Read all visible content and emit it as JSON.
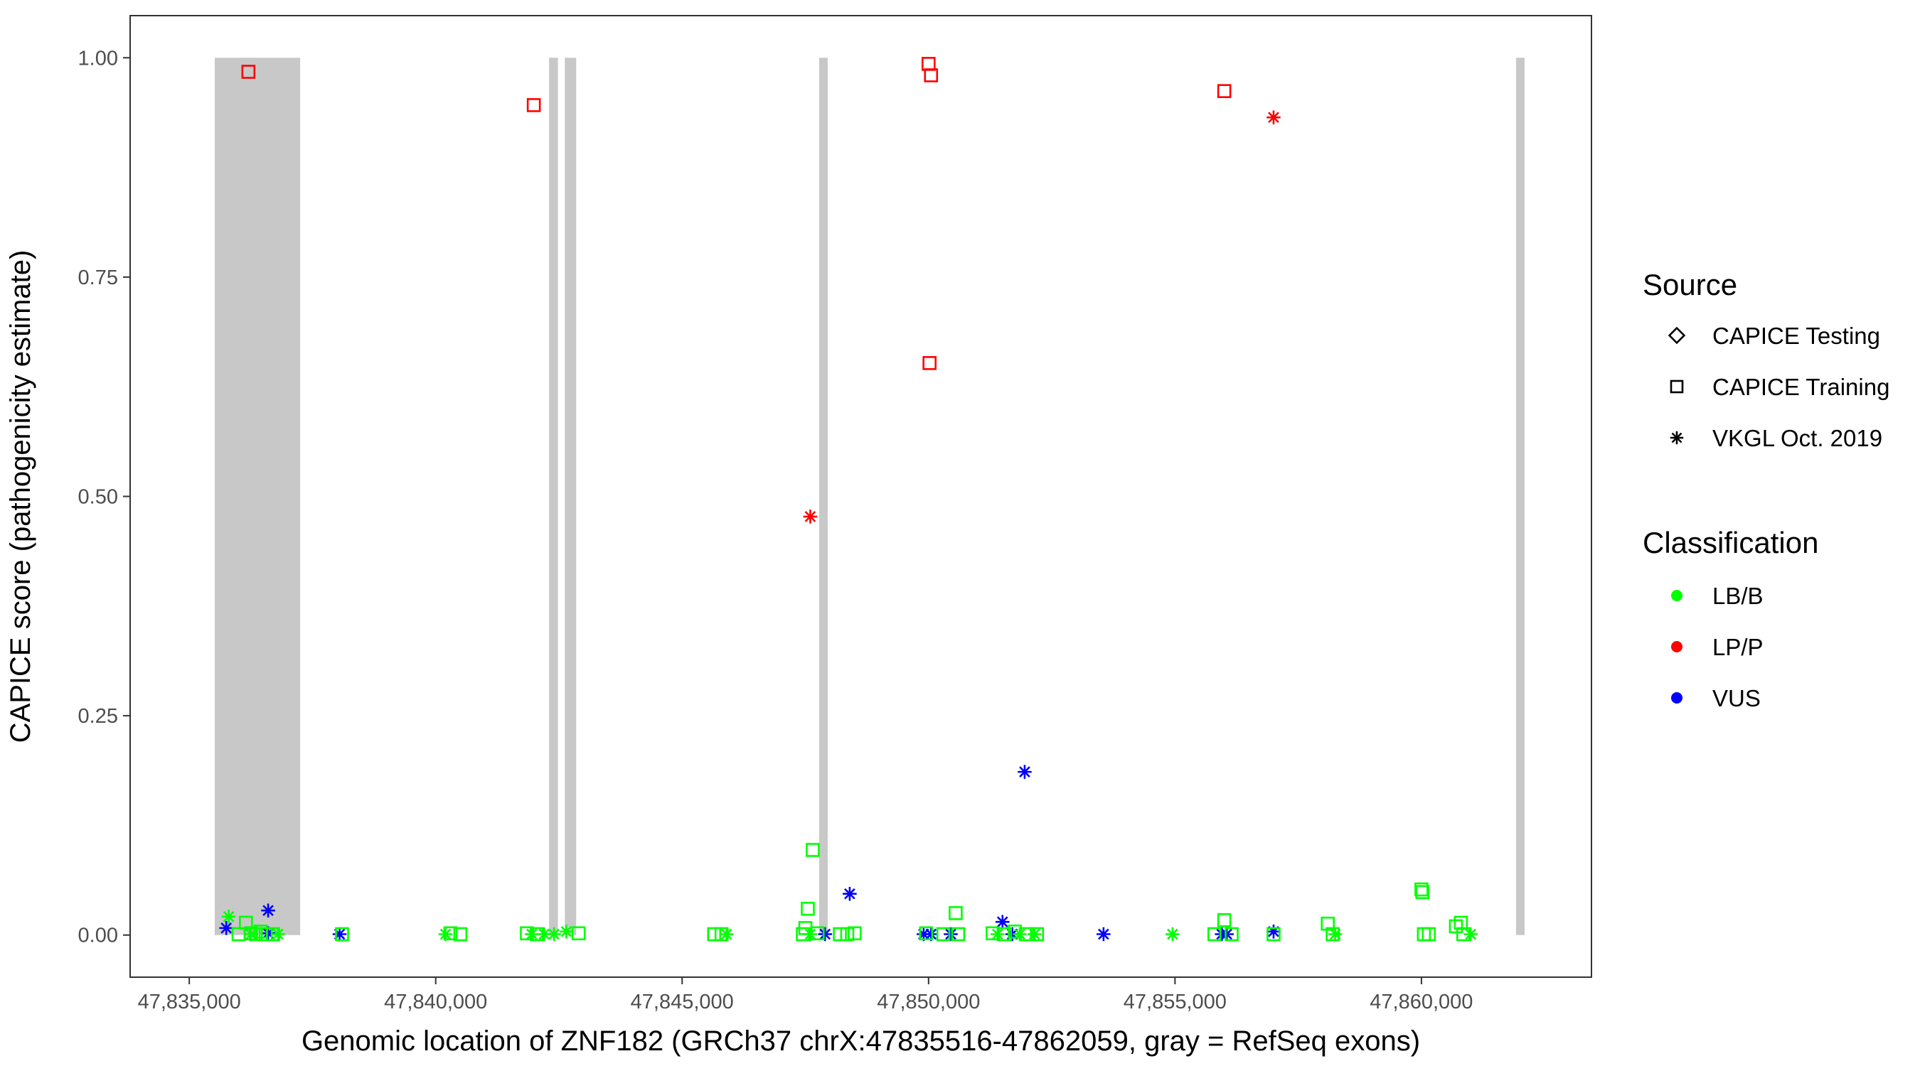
{
  "chart_data": {
    "type": "scatter",
    "title": "",
    "xlabel": "Genomic location of ZNF182 (GRCh37 chrX:47835516-47862059, gray = RefSeq exons)",
    "ylabel": "CAPICE score (pathogenicity estimate)",
    "xlim": [
      47833800,
      47863450
    ],
    "ylim": [
      -0.048,
      1.048
    ],
    "x_ticks": [
      47835000,
      47840000,
      47845000,
      47850000,
      47855000,
      47860000
    ],
    "x_tick_labels": [
      "47,835,000",
      "47,840,000",
      "47,845,000",
      "47,850,000",
      "47,855,000",
      "47,860,000"
    ],
    "y_ticks": [
      0,
      0.25,
      0.5,
      0.75,
      1.0
    ],
    "y_tick_labels": [
      "0.00",
      "0.25",
      "0.50",
      "0.75",
      "1.00"
    ],
    "grid": false,
    "exons": [
      [
        47835516,
        47837250
      ],
      [
        47842300,
        47842480
      ],
      [
        47842620,
        47842850
      ],
      [
        47847780,
        47847950
      ],
      [
        47861920,
        47862059
      ]
    ],
    "exon_color": "#c8c8c8",
    "legend": {
      "placement": "right",
      "source": {
        "title": "Source",
        "items": [
          {
            "label": "CAPICE Testing",
            "shape": "diamond"
          },
          {
            "label": "CAPICE Training",
            "shape": "square"
          },
          {
            "label": "VKGL Oct. 2019",
            "shape": "asterisk"
          }
        ]
      },
      "classification": {
        "title": "Classification",
        "items": [
          {
            "label": "LB/B",
            "color": "#00ff00"
          },
          {
            "label": "LP/P",
            "color": "#ff0000"
          },
          {
            "label": "VUS",
            "color": "#0000ff"
          }
        ]
      }
    },
    "series": [
      {
        "name": "LP/P",
        "color": "#ff0000",
        "points": [
          {
            "x": 47836200,
            "y": 0.984,
            "shape": "square"
          },
          {
            "x": 47841990,
            "y": 0.946,
            "shape": "square"
          },
          {
            "x": 47850000,
            "y": 0.993,
            "shape": "square"
          },
          {
            "x": 47850050,
            "y": 0.98,
            "shape": "square"
          },
          {
            "x": 47850020,
            "y": 0.652,
            "shape": "square"
          },
          {
            "x": 47847600,
            "y": 0.477,
            "shape": "asterisk"
          },
          {
            "x": 47856000,
            "y": 0.962,
            "shape": "square"
          },
          {
            "x": 47857000,
            "y": 0.932,
            "shape": "asterisk"
          }
        ]
      },
      {
        "name": "VUS",
        "color": "#0000ff",
        "points": [
          {
            "x": 47835750,
            "y": 0.008,
            "shape": "asterisk"
          },
          {
            "x": 47836600,
            "y": 0.028,
            "shape": "asterisk"
          },
          {
            "x": 47836600,
            "y": 0.002,
            "shape": "asterisk"
          },
          {
            "x": 47838050,
            "y": 0.001,
            "shape": "asterisk"
          },
          {
            "x": 47847900,
            "y": 0.001,
            "shape": "asterisk"
          },
          {
            "x": 47848400,
            "y": 0.047,
            "shape": "asterisk"
          },
          {
            "x": 47849900,
            "y": 0.001,
            "shape": "asterisk"
          },
          {
            "x": 47850050,
            "y": 0.001,
            "shape": "asterisk"
          },
          {
            "x": 47850450,
            "y": 0.001,
            "shape": "asterisk"
          },
          {
            "x": 47851500,
            "y": 0.015,
            "shape": "asterisk"
          },
          {
            "x": 47851700,
            "y": 0.001,
            "shape": "asterisk"
          },
          {
            "x": 47851950,
            "y": 0.186,
            "shape": "asterisk"
          },
          {
            "x": 47853550,
            "y": 0.001,
            "shape": "asterisk"
          },
          {
            "x": 47855950,
            "y": 0.001,
            "shape": "asterisk"
          },
          {
            "x": 47856050,
            "y": 0.001,
            "shape": "asterisk"
          },
          {
            "x": 47857000,
            "y": 0.004,
            "shape": "asterisk"
          }
        ]
      },
      {
        "name": "LB/B",
        "color": "#00ff00",
        "points": [
          {
            "x": 47835800,
            "y": 0.021,
            "shape": "asterisk"
          },
          {
            "x": 47836000,
            "y": 0.001,
            "shape": "square"
          },
          {
            "x": 47836150,
            "y": 0.014,
            "shape": "square"
          },
          {
            "x": 47836250,
            "y": 0.002,
            "shape": "square"
          },
          {
            "x": 47836350,
            "y": 0.001,
            "shape": "square"
          },
          {
            "x": 47836450,
            "y": 0.004,
            "shape": "square"
          },
          {
            "x": 47836550,
            "y": 0.001,
            "shape": "square"
          },
          {
            "x": 47836700,
            "y": 0.001,
            "shape": "square"
          },
          {
            "x": 47836250,
            "y": 0.001,
            "shape": "asterisk"
          },
          {
            "x": 47836800,
            "y": 0.001,
            "shape": "asterisk"
          },
          {
            "x": 47838100,
            "y": 0.001,
            "shape": "square"
          },
          {
            "x": 47840200,
            "y": 0.001,
            "shape": "asterisk"
          },
          {
            "x": 47840300,
            "y": 0.002,
            "shape": "square"
          },
          {
            "x": 47840500,
            "y": 0.001,
            "shape": "square"
          },
          {
            "x": 47841850,
            "y": 0.002,
            "shape": "square"
          },
          {
            "x": 47841950,
            "y": 0.001,
            "shape": "asterisk"
          },
          {
            "x": 47842050,
            "y": 0.001,
            "shape": "square"
          },
          {
            "x": 47842200,
            "y": 0.001,
            "shape": "asterisk"
          },
          {
            "x": 47842400,
            "y": 0.001,
            "shape": "asterisk"
          },
          {
            "x": 47842650,
            "y": 0.004,
            "shape": "asterisk"
          },
          {
            "x": 47842900,
            "y": 0.002,
            "shape": "square"
          },
          {
            "x": 47845650,
            "y": 0.001,
            "shape": "square"
          },
          {
            "x": 47845800,
            "y": 0.001,
            "shape": "square"
          },
          {
            "x": 47845900,
            "y": 0.001,
            "shape": "asterisk"
          },
          {
            "x": 47847450,
            "y": 0.001,
            "shape": "square"
          },
          {
            "x": 47847500,
            "y": 0.008,
            "shape": "square"
          },
          {
            "x": 47847550,
            "y": 0.03,
            "shape": "square"
          },
          {
            "x": 47847650,
            "y": 0.097,
            "shape": "square"
          },
          {
            "x": 47847600,
            "y": 0.001,
            "shape": "asterisk"
          },
          {
            "x": 47847750,
            "y": 0.002,
            "shape": "square"
          },
          {
            "x": 47848200,
            "y": 0.001,
            "shape": "square"
          },
          {
            "x": 47848350,
            "y": 0.001,
            "shape": "square"
          },
          {
            "x": 47848500,
            "y": 0.002,
            "shape": "square"
          },
          {
            "x": 47849950,
            "y": 0.002,
            "shape": "square"
          },
          {
            "x": 47850300,
            "y": 0.001,
            "shape": "square"
          },
          {
            "x": 47850550,
            "y": 0.025,
            "shape": "square"
          },
          {
            "x": 47850600,
            "y": 0.001,
            "shape": "square"
          },
          {
            "x": 47851300,
            "y": 0.002,
            "shape": "square"
          },
          {
            "x": 47851400,
            "y": 0.001,
            "shape": "asterisk"
          },
          {
            "x": 47851550,
            "y": 0.001,
            "shape": "square"
          },
          {
            "x": 47851750,
            "y": 0.004,
            "shape": "square"
          },
          {
            "x": 47851850,
            "y": 0.001,
            "shape": "asterisk"
          },
          {
            "x": 47852000,
            "y": 0.001,
            "shape": "square"
          },
          {
            "x": 47852150,
            "y": 0.001,
            "shape": "asterisk"
          },
          {
            "x": 47852200,
            "y": 0.001,
            "shape": "square"
          },
          {
            "x": 47854950,
            "y": 0.001,
            "shape": "asterisk"
          },
          {
            "x": 47855800,
            "y": 0.001,
            "shape": "square"
          },
          {
            "x": 47856000,
            "y": 0.017,
            "shape": "square"
          },
          {
            "x": 47856150,
            "y": 0.001,
            "shape": "square"
          },
          {
            "x": 47857000,
            "y": 0.001,
            "shape": "square"
          },
          {
            "x": 47858100,
            "y": 0.013,
            "shape": "square"
          },
          {
            "x": 47858200,
            "y": 0.001,
            "shape": "square"
          },
          {
            "x": 47858250,
            "y": 0.001,
            "shape": "asterisk"
          },
          {
            "x": 47860000,
            "y": 0.052,
            "shape": "square"
          },
          {
            "x": 47860020,
            "y": 0.049,
            "shape": "square"
          },
          {
            "x": 47860050,
            "y": 0.001,
            "shape": "square"
          },
          {
            "x": 47860150,
            "y": 0.001,
            "shape": "square"
          },
          {
            "x": 47860700,
            "y": 0.01,
            "shape": "square"
          },
          {
            "x": 47860800,
            "y": 0.014,
            "shape": "square"
          },
          {
            "x": 47860850,
            "y": 0.001,
            "shape": "square"
          },
          {
            "x": 47861000,
            "y": 0.001,
            "shape": "asterisk"
          }
        ]
      }
    ]
  }
}
